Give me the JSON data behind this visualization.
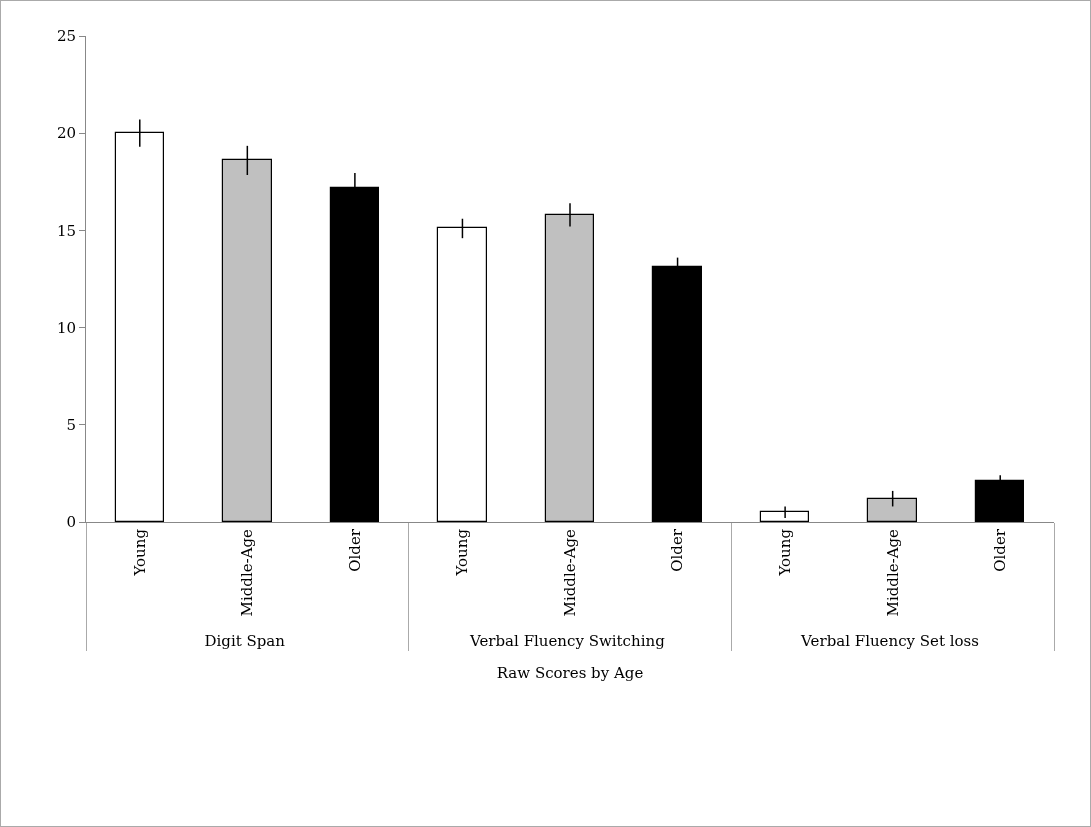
{
  "chart_data": {
    "type": "bar",
    "xlabel": "Raw Scores by Age",
    "categories": [
      "Digit Span",
      "Verbal Fluency Switching",
      "Verbal Fluency Set loss"
    ],
    "series": [
      {
        "name": "Young",
        "color": "#ffffff",
        "values": [
          20,
          15.1,
          0.5
        ],
        "errors": [
          0.7,
          0.5,
          0.3
        ]
      },
      {
        "name": "Middle-Age",
        "color": "#c0c0c0",
        "values": [
          18.6,
          15.8,
          1.2
        ],
        "errors": [
          0.75,
          0.6,
          0.4
        ]
      },
      {
        "name": "Older",
        "color": "#000000",
        "values": [
          17.2,
          13.1,
          2.1
        ],
        "errors": [
          0.75,
          0.5,
          0.3
        ]
      }
    ],
    "ylim": [
      0,
      25
    ],
    "yticks": [
      0,
      5,
      10,
      15,
      20,
      25
    ],
    "grid": false
  }
}
